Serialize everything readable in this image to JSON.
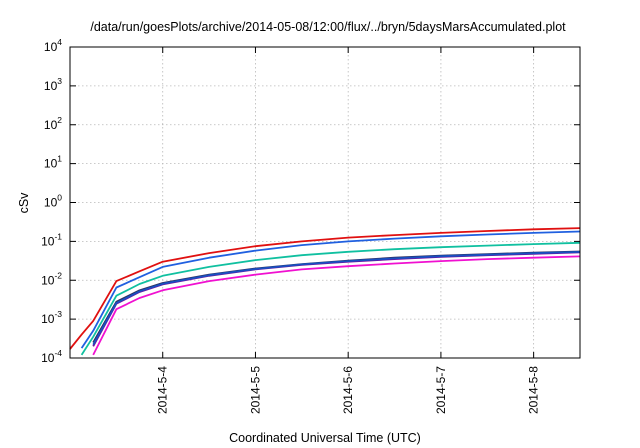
{
  "chart_data": {
    "type": "line",
    "title": "/data/run/goesPlots/archive/2014-05-08/12:00/flux/../bryn/5daysMarsAccumulated.plot",
    "xlabel": "Coordinated Universal Time (UTC)",
    "ylabel": "cSv",
    "y_scale": "log",
    "ylim": [
      "1e-4",
      "1e4"
    ],
    "xlim": [
      "2014-05-03 00:00",
      "2014-05-08 12:00"
    ],
    "grid": true,
    "legend": "none",
    "x_ticks": [
      {
        "label": "2014-5-4",
        "date": "2014-05-04 00:00"
      },
      {
        "label": "2014-5-5",
        "date": "2014-05-05 00:00"
      },
      {
        "label": "2014-5-6",
        "date": "2014-05-06 00:00"
      },
      {
        "label": "2014-5-7",
        "date": "2014-05-07 00:00"
      },
      {
        "label": "2014-5-8",
        "date": "2014-05-08 00:00"
      }
    ],
    "y_ticks": [
      {
        "base": "10",
        "exp": "-4",
        "value": 0.0001
      },
      {
        "base": "10",
        "exp": "-3",
        "value": 0.001
      },
      {
        "base": "10",
        "exp": "-2",
        "value": 0.01
      },
      {
        "base": "10",
        "exp": "-1",
        "value": 0.1
      },
      {
        "base": "10",
        "exp": "0",
        "value": 1
      },
      {
        "base": "10",
        "exp": "1",
        "value": 10
      },
      {
        "base": "10",
        "exp": "2",
        "value": 100
      },
      {
        "base": "10",
        "exp": "3",
        "value": 1000
      },
      {
        "base": "10",
        "exp": "4",
        "value": 10000
      }
    ],
    "x": [
      "2014-05-03 00:00",
      "2014-05-03 03:00",
      "2014-05-03 06:00",
      "2014-05-03 12:00",
      "2014-05-03 18:00",
      "2014-05-04 00:00",
      "2014-05-04 12:00",
      "2014-05-05 00:00",
      "2014-05-05 12:00",
      "2014-05-06 00:00",
      "2014-05-06 12:00",
      "2014-05-07 00:00",
      "2014-05-07 12:00",
      "2014-05-08 00:00",
      "2014-05-08 12:00"
    ],
    "series": [
      {
        "color": "#e01010",
        "values": [
          0.00017,
          0.0004,
          0.0009,
          0.0095,
          0.017,
          0.03,
          0.05,
          0.075,
          0.1,
          0.125,
          0.145,
          0.165,
          0.185,
          0.205,
          0.22
        ]
      },
      {
        "color": "#2060e0",
        "values": [
          null,
          0.00018,
          0.0005,
          0.0065,
          0.012,
          0.022,
          0.038,
          0.058,
          0.08,
          0.1,
          0.118,
          0.135,
          0.15,
          0.165,
          0.18
        ]
      },
      {
        "color": "#10c0a0",
        "values": [
          null,
          0.00012,
          0.00035,
          0.004,
          0.008,
          0.013,
          0.022,
          0.033,
          0.044,
          0.054,
          0.063,
          0.071,
          0.078,
          0.085,
          0.092
        ]
      },
      {
        "color": "#303060",
        "values": [
          null,
          null,
          0.00025,
          0.0028,
          0.0055,
          0.0085,
          0.014,
          0.02,
          0.026,
          0.032,
          0.038,
          0.043,
          0.047,
          0.051,
          0.055
        ]
      },
      {
        "color": "#7010a0",
        "values": [
          null,
          null,
          0.0002,
          0.0025,
          0.005,
          0.0078,
          0.013,
          0.019,
          0.025,
          0.03,
          0.035,
          0.04,
          0.044,
          0.048,
          0.052
        ]
      },
      {
        "color": "#1850c0",
        "values": [
          null,
          null,
          0.00022,
          0.0026,
          0.0052,
          0.0081,
          0.0135,
          0.0195,
          0.0255,
          0.031,
          0.0365,
          0.0415,
          0.0455,
          0.0495,
          0.0535
        ]
      },
      {
        "color": "#f010d0",
        "values": [
          null,
          null,
          0.00012,
          0.0018,
          0.0035,
          0.0055,
          0.0095,
          0.014,
          0.019,
          0.023,
          0.027,
          0.031,
          0.035,
          0.038,
          0.041
        ]
      }
    ]
  }
}
